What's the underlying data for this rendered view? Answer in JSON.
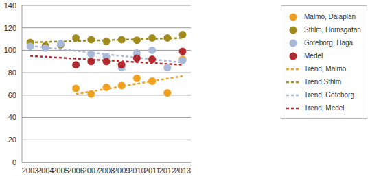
{
  "chart_data": {
    "type": "scatter",
    "categories": [
      "2003",
      "2004",
      "2005",
      "2006",
      "2007",
      "2008",
      "2009",
      "2010",
      "2011",
      "2012",
      "2013"
    ],
    "ylim": [
      0,
      140
    ],
    "yticks": [
      0,
      20,
      40,
      60,
      80,
      100,
      120,
      140
    ],
    "grid": true,
    "legend": "right",
    "series": [
      {
        "name": "Malmö, Dalaplan",
        "color": "#f0a020",
        "type": "scatter",
        "marker": "circle",
        "values": [
          null,
          null,
          null,
          66,
          61,
          67,
          68.5,
          75,
          72.5,
          62,
          92
        ]
      },
      {
        "name": "Sthlm, Hornsgatan",
        "color": "#a08c1e",
        "type": "scatter",
        "marker": "circle",
        "values": [
          107,
          104,
          105,
          111,
          109.5,
          108,
          109.5,
          109,
          111,
          111,
          114
        ]
      },
      {
        "name": "Göteborg, Haga",
        "color": "#a9b9d9",
        "type": "scatter",
        "marker": "circle",
        "values": [
          103.5,
          102,
          106,
          null,
          96.5,
          94,
          84.5,
          97.5,
          100,
          84.5,
          91
        ]
      },
      {
        "name": "Medel",
        "color": "#b22a30",
        "type": "scatter",
        "marker": "circle",
        "values": [
          null,
          null,
          null,
          87,
          90,
          90,
          87,
          93,
          92,
          null,
          99
        ]
      },
      {
        "name": "Trend, Malmö",
        "color": "#f0a020",
        "type": "line",
        "line_style": "dashed",
        "values": [
          null,
          null,
          null,
          61,
          null,
          null,
          null,
          null,
          null,
          null,
          77
        ]
      },
      {
        "name": "Trend,Sthlm",
        "color": "#a08c1e",
        "type": "line",
        "line_style": "dashed",
        "values": [
          107,
          null,
          null,
          null,
          null,
          null,
          null,
          null,
          null,
          null,
          111
        ]
      },
      {
        "name": "Trend, Göteborg",
        "color": "#a9b9d9",
        "type": "line",
        "line_style": "dashed",
        "values": [
          104,
          null,
          null,
          null,
          null,
          null,
          null,
          null,
          null,
          null,
          89
        ]
      },
      {
        "name": "Trend, Medel",
        "color": "#b22a30",
        "type": "line",
        "line_style": "dashed",
        "values": [
          95,
          null,
          null,
          null,
          null,
          null,
          null,
          null,
          null,
          null,
          87
        ]
      }
    ]
  }
}
